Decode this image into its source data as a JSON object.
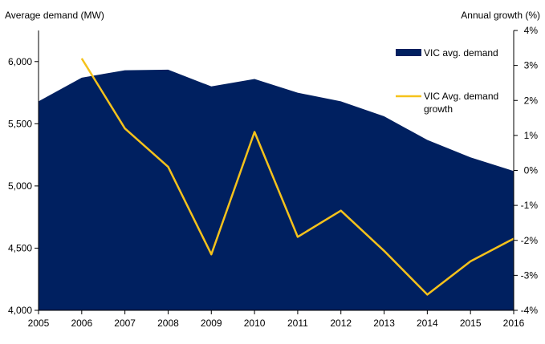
{
  "chart_data": {
    "type": "area+line",
    "x": [
      2005,
      2006,
      2007,
      2008,
      2009,
      2010,
      2011,
      2012,
      2013,
      2014,
      2015,
      2016
    ],
    "x_tick_labels": [
      "2005",
      "2006",
      "2007",
      "2008",
      "2009",
      "2010",
      "2011",
      "2012",
      "2013",
      "2014",
      "2015",
      "2016"
    ],
    "left_axis": {
      "label": "Average demand (MW)",
      "ylim": [
        4000,
        6250
      ],
      "ticks": [
        4000,
        4500,
        5000,
        5500,
        6000
      ],
      "tick_labels": [
        "4,000",
        "4,500",
        "5,000",
        "5,500",
        "6,000"
      ]
    },
    "right_axis": {
      "label": "Annual growth (%)",
      "ylim": [
        -4,
        4
      ],
      "ticks": [
        -4,
        -3,
        -2,
        -1,
        0,
        1,
        2,
        3,
        4
      ],
      "tick_labels": [
        "-4%",
        "-3%",
        "-2%",
        "-1%",
        "0%",
        "1%",
        "2%",
        "3%",
        "4%"
      ]
    },
    "series": [
      {
        "name": "VIC avg. demand",
        "type": "area",
        "axis": "left",
        "color": "#002060",
        "values": [
          5680,
          5870,
          5930,
          5935,
          5800,
          5860,
          5750,
          5680,
          5560,
          5370,
          5230,
          5120
        ]
      },
      {
        "name": "VIC Avg. demand growth",
        "type": "line",
        "axis": "right",
        "color": "#F5C21B",
        "x": [
          2006,
          2007,
          2008,
          2009,
          2010,
          2011,
          2012,
          2013,
          2014,
          2015,
          2016
        ],
        "values": [
          3.2,
          1.2,
          0.1,
          -2.4,
          1.1,
          -1.9,
          -1.15,
          -2.3,
          -3.55,
          -2.6,
          -1.95
        ]
      }
    ],
    "legend": {
      "placement": "top-right-inside",
      "entries": [
        "VIC avg. demand",
        "VIC Avg. demand",
        "growth"
      ]
    },
    "grid": false
  }
}
